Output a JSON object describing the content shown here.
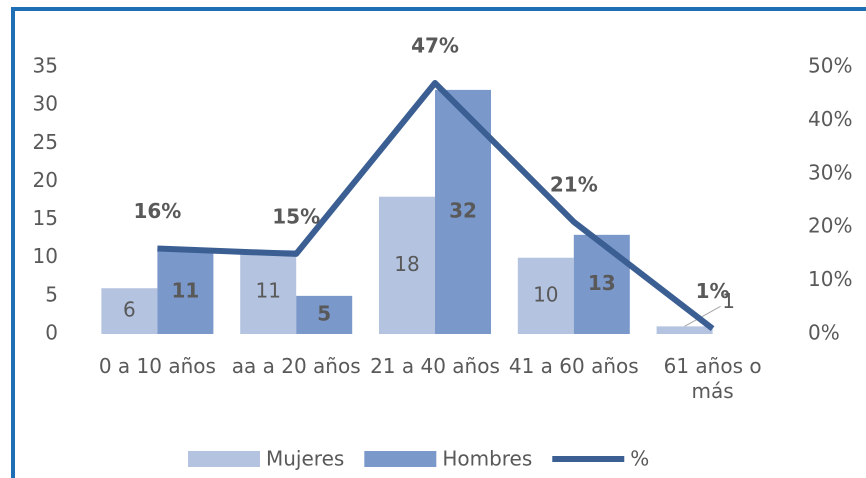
{
  "chart_data": {
    "type": "bar",
    "categories": [
      "0 a 10 años",
      "aa a 20 años",
      "21 a 40 años",
      "41 a 60 años",
      "61 años o más"
    ],
    "series": [
      {
        "name": "Mujeres",
        "color": "#b4c3e0",
        "values": [
          6,
          11,
          18,
          10,
          1
        ]
      },
      {
        "name": "Hombres",
        "color": "#7b98cb",
        "values": [
          11,
          5,
          32,
          13,
          0
        ]
      },
      {
        "name": "%",
        "color": "#3b5f93",
        "axis": "y2",
        "type": "line",
        "values": [
          16,
          15,
          47,
          21,
          1
        ],
        "value_labels": [
          "16%",
          "15%",
          "47%",
          "21%",
          "1%"
        ]
      }
    ],
    "ylim": [
      0,
      35
    ],
    "yticks": [
      0,
      5,
      10,
      15,
      20,
      25,
      30,
      35
    ],
    "y2lim": [
      0,
      50
    ],
    "y2ticks": [
      {
        "value": 0,
        "label": "0%"
      },
      {
        "value": 10,
        "label": "10%"
      },
      {
        "value": 20,
        "label": "20%"
      },
      {
        "value": 30,
        "label": "30%"
      },
      {
        "value": 40,
        "label": "40%"
      },
      {
        "value": 50,
        "label": "50%"
      }
    ],
    "legend": "bottom"
  }
}
